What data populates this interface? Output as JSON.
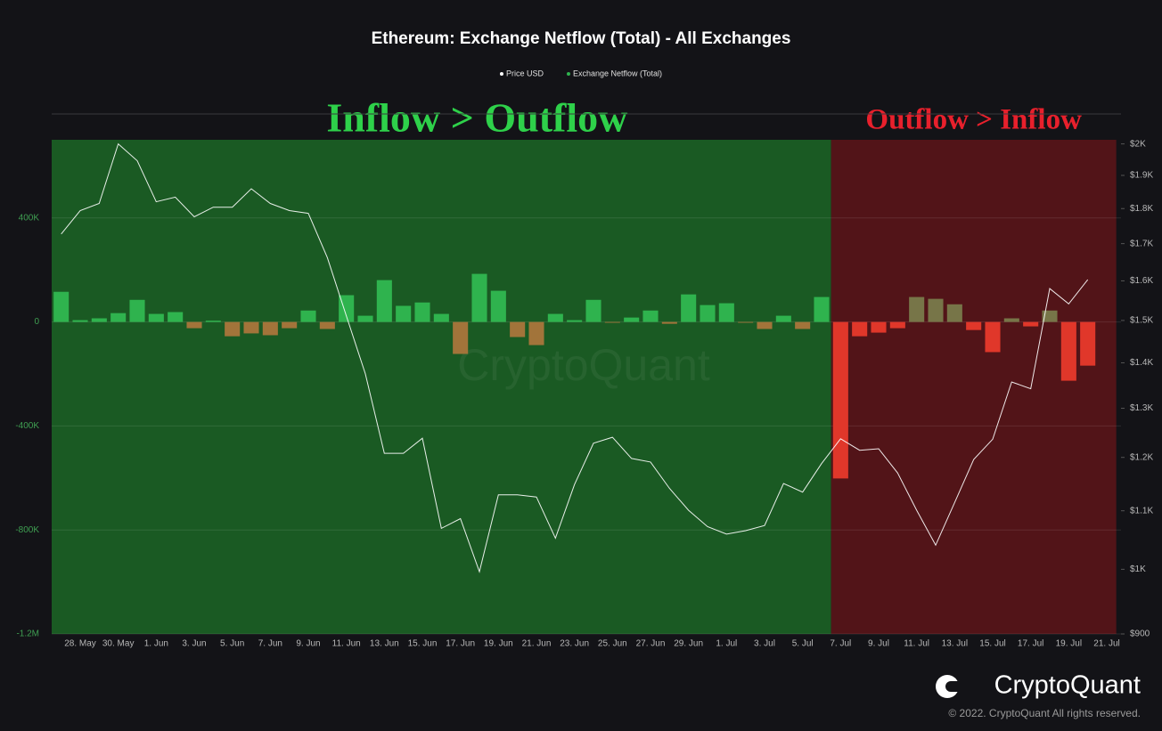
{
  "chart_data": {
    "type": "bar",
    "title": "Ethereum: Exchange Netflow (Total) - All Exchanges",
    "watermark": "CryptoQuant",
    "categories": [
      null,
      "28. May",
      null,
      "30. May",
      null,
      "1. Jun",
      null,
      "3. Jun",
      null,
      "5. Jun",
      null,
      "7. Jun",
      null,
      "9. Jun",
      null,
      "11. Jun",
      null,
      "13. Jun",
      null,
      "15. Jun",
      null,
      "17. Jun",
      null,
      "19. Jun",
      null,
      "21. Jun",
      null,
      "23. Jun",
      null,
      "25. Jun",
      null,
      "27. Jun",
      null,
      "29. Jun",
      null,
      "1. Jul",
      null,
      "3. Jul",
      null,
      "5. Jul",
      null,
      "7. Jul",
      null,
      "9. Jul",
      null,
      "11. Jul",
      null,
      "13. Jul",
      null,
      "15. Jul",
      null,
      "17. Jul",
      null,
      "19. Jul",
      null,
      "21. Jul"
    ],
    "series": [
      {
        "name": "Exchange Netflow (Total)",
        "type": "bar",
        "color": "#2fb34e",
        "values": [
          116000,
          7000,
          14000,
          34000,
          85000,
          31000,
          38000,
          -24000,
          5000,
          -55000,
          -44000,
          -51000,
          -24000,
          44000,
          -27000,
          103000,
          24000,
          161000,
          62000,
          75000,
          31000,
          -123000,
          185000,
          120000,
          -58000,
          -89000,
          31000,
          7000,
          85000,
          -3000,
          17000,
          44000,
          -7000,
          106000,
          65000,
          72000,
          -3000,
          -27000,
          24000,
          -27000,
          96000,
          -602000,
          -55000,
          -41000,
          -24000,
          96000,
          89000,
          68000,
          -31000,
          -116000,
          14000,
          -17000,
          44000,
          -226000,
          -168000,
          null
        ],
        "colors": [
          "#2fb34e",
          "#2fb34e",
          "#2fb34e",
          "#2fb34e",
          "#2fb34e",
          "#2fb34e",
          "#2fb34e",
          "#a2743a",
          "#2fb34e",
          "#a2743a",
          "#a2743a",
          "#a2743a",
          "#a2743a",
          "#2fb34e",
          "#a2743a",
          "#2fb34e",
          "#2fb34e",
          "#2fb34e",
          "#2fb34e",
          "#2fb34e",
          "#2fb34e",
          "#a2743a",
          "#2fb34e",
          "#2fb34e",
          "#a2743a",
          "#a2743a",
          "#2fb34e",
          "#2fb34e",
          "#2fb34e",
          "#a2743a",
          "#2fb34e",
          "#2fb34e",
          "#a2743a",
          "#2fb34e",
          "#2fb34e",
          "#2fb34e",
          "#a2743a",
          "#a2743a",
          "#2fb34e",
          "#a2743a",
          "#2fb34e",
          "#e0372a",
          "#e0372a",
          "#e0372a",
          "#e0372a",
          "#777548",
          "#777548",
          "#777548",
          "#e0372a",
          "#e0372a",
          "#777548",
          "#e0372a",
          "#777548",
          "#e0372a",
          "#e0372a",
          null
        ]
      },
      {
        "name": "Price USD",
        "type": "line",
        "axis": "y2",
        "color": "#ffffff",
        "values": [
          1727,
          1794,
          1815,
          2000,
          1946,
          1820,
          1834,
          1776,
          1804,
          1804,
          1859,
          1815,
          1794,
          1786,
          1662,
          1511,
          1375,
          1208,
          1208,
          1238,
          1069,
          1086,
          996,
          1129,
          1129,
          1125,
          1052,
          1148,
          1228,
          1240,
          1198,
          1191,
          1141,
          1101,
          1072,
          1059,
          1065,
          1074,
          1150,
          1134,
          1188,
          1237,
          1214,
          1217,
          1170,
          1101,
          1040,
          1115,
          1196,
          1236,
          1357,
          1342,
          1580,
          1541,
          1603,
          null
        ]
      }
    ],
    "ylim": [
      -1200000,
      800000
    ],
    "yticks": [
      {
        "value": -1200000,
        "label": "-1.2M"
      },
      {
        "value": -800000,
        "label": "-800K"
      },
      {
        "value": -400000,
        "label": "-400K"
      },
      0,
      {
        "value": 400000,
        "label": "400K"
      }
    ],
    "y2lim": [
      900,
      2100
    ],
    "y2_log": true,
    "y2ticks": [
      {
        "value": 900,
        "label": "$900"
      },
      {
        "value": 1000,
        "label": "$1K"
      },
      {
        "value": 1100,
        "label": "$1.1K"
      },
      {
        "value": 1200,
        "label": "$1.2K"
      },
      {
        "value": 1300,
        "label": "$1.3K"
      },
      {
        "value": 1400,
        "label": "$1.4K"
      },
      {
        "value": 1500,
        "label": "$1.5K"
      },
      {
        "value": 1600,
        "label": "$1.6K"
      },
      {
        "value": 1700,
        "label": "$1.7K"
      },
      {
        "value": 1800,
        "label": "$1.8K"
      },
      {
        "value": 1900,
        "label": "$1.9K"
      },
      {
        "value": 2000,
        "label": "$2K"
      }
    ],
    "grid": true,
    "legend": "top",
    "regions": [
      {
        "label": "Inflow > Outflow",
        "color": "#1a5a23",
        "text_color": "#2ed14a",
        "categories_range": [
          0,
          40
        ]
      },
      {
        "label": "Outflow > Inflow",
        "color": "#521418",
        "text_color": "#e8202c",
        "categories_range": [
          41,
          55
        ]
      }
    ]
  },
  "footer": {
    "brand": "CryptoQuant",
    "copyright": "© 2022. CryptoQuant All rights reserved."
  }
}
